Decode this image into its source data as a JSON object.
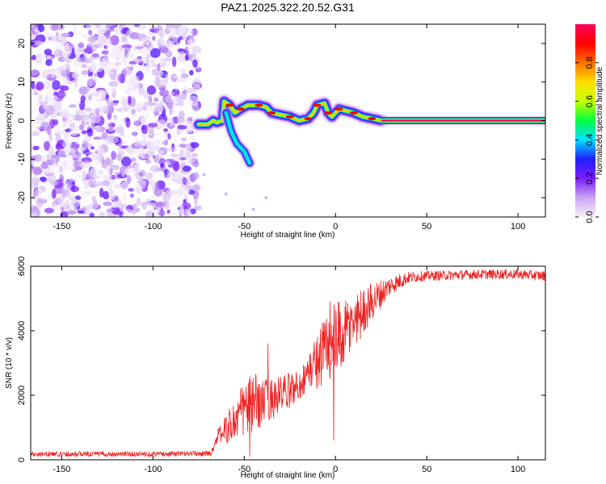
{
  "title": "PAZ1.2025.322.20.52.G31",
  "chart_data": [
    {
      "type": "heatmap",
      "name": "spectrogram",
      "xlabel": "Height of straight line (km)",
      "ylabel": "Frequency (Hz)",
      "xlim": [
        -167,
        115
      ],
      "ylim": [
        -25,
        25
      ],
      "xticks": [
        -150,
        -100,
        -50,
        0,
        50,
        100
      ],
      "yticks": [
        -20,
        -10,
        0,
        10,
        20
      ],
      "noise_region": {
        "x_range": [
          -167,
          -75
        ],
        "y_range": [
          -25,
          25
        ],
        "level": "low (0.0-0.2)"
      },
      "ridge": [
        {
          "x": -75,
          "y": -1
        },
        {
          "x": -70,
          "y": -1
        },
        {
          "x": -67,
          "y": 0
        },
        {
          "x": -65,
          "y": -0.5
        },
        {
          "x": -62,
          "y": 0
        },
        {
          "x": -61,
          "y": 5
        },
        {
          "x": -58,
          "y": 4
        },
        {
          "x": -55,
          "y": 2
        },
        {
          "x": -52,
          "y": 3
        },
        {
          "x": -48,
          "y": 4
        },
        {
          "x": -42,
          "y": 4
        },
        {
          "x": -38,
          "y": 3.5
        },
        {
          "x": -35,
          "y": 2
        },
        {
          "x": -30,
          "y": 1.5
        },
        {
          "x": -25,
          "y": 1
        },
        {
          "x": -20,
          "y": 0
        },
        {
          "x": -15,
          "y": 0.5
        },
        {
          "x": -12,
          "y": 2
        },
        {
          "x": -10,
          "y": 4
        },
        {
          "x": -6,
          "y": 4.5
        },
        {
          "x": -4,
          "y": 2
        },
        {
          "x": -2,
          "y": 1
        },
        {
          "x": 2,
          "y": 3
        },
        {
          "x": 6,
          "y": 2.5
        },
        {
          "x": 10,
          "y": 2
        },
        {
          "x": 15,
          "y": 1
        },
        {
          "x": 20,
          "y": 0.5
        },
        {
          "x": 25,
          "y": 0
        },
        {
          "x": 115,
          "y": 0
        }
      ],
      "branch": [
        {
          "x": -60,
          "y": 2
        },
        {
          "x": -57,
          "y": -3
        },
        {
          "x": -54,
          "y": -6
        },
        {
          "x": -50,
          "y": -8
        },
        {
          "x": -47,
          "y": -11
        }
      ],
      "carrier": {
        "x_range": [
          25,
          115
        ],
        "y": 0,
        "amplitude": 1.0
      },
      "colorbar": {
        "label": "Normalized spectral amplitude",
        "range": [
          0,
          1
        ],
        "ticks": [
          0.0,
          0.2,
          0.4,
          0.6,
          0.8
        ],
        "colormap": [
          "#f5f0fa",
          "#c9a6f0",
          "#7a1cff",
          "#2020ff",
          "#00e0ff",
          "#00ff40",
          "#c8ff00",
          "#ffe000",
          "#ff7000",
          "#ff0000",
          "#ff0060"
        ]
      }
    },
    {
      "type": "line",
      "name": "snr",
      "xlabel": "Height of straight line (km)",
      "ylabel": "SNR (10 * v/v)",
      "xlim": [
        -167,
        115
      ],
      "ylim": [
        0,
        6000
      ],
      "xticks": [
        -150,
        -100,
        -50,
        0,
        50,
        100
      ],
      "yticks": [
        0,
        2000,
        4000,
        6000
      ],
      "color": "#ee2222",
      "envelope": [
        {
          "x": -167,
          "mean": 180,
          "spread": 80
        },
        {
          "x": -100,
          "mean": 180,
          "spread": 80
        },
        {
          "x": -68,
          "mean": 200,
          "spread": 80
        },
        {
          "x": -65,
          "mean": 700,
          "spread": 200
        },
        {
          "x": -55,
          "mean": 1200,
          "spread": 700
        },
        {
          "x": -50,
          "mean": 1600,
          "spread": 900
        },
        {
          "x": -45,
          "mean": 1700,
          "spread": 1000
        },
        {
          "x": -40,
          "mean": 1800,
          "spread": 700
        },
        {
          "x": -30,
          "mean": 2000,
          "spread": 600
        },
        {
          "x": -20,
          "mean": 2300,
          "spread": 500
        },
        {
          "x": -15,
          "mean": 2700,
          "spread": 500
        },
        {
          "x": -10,
          "mean": 3100,
          "spread": 900
        },
        {
          "x": -5,
          "mean": 3500,
          "spread": 1200
        },
        {
          "x": 0,
          "mean": 3600,
          "spread": 1300
        },
        {
          "x": 5,
          "mean": 3900,
          "spread": 1000
        },
        {
          "x": 10,
          "mean": 4300,
          "spread": 900
        },
        {
          "x": 20,
          "mean": 4900,
          "spread": 600
        },
        {
          "x": 30,
          "mean": 5400,
          "spread": 300
        },
        {
          "x": 40,
          "mean": 5650,
          "spread": 180
        },
        {
          "x": 50,
          "mean": 5700,
          "spread": 150
        },
        {
          "x": 80,
          "mean": 5750,
          "spread": 150
        },
        {
          "x": 100,
          "mean": 5750,
          "spread": 150
        },
        {
          "x": 115,
          "mean": 5700,
          "spread": 150
        }
      ],
      "notable_points": [
        {
          "x": -37,
          "y": 3600
        },
        {
          "x": -3,
          "y": 4900
        },
        {
          "x": -1,
          "y": 600
        },
        {
          "x": -47,
          "y": 100
        }
      ]
    }
  ]
}
